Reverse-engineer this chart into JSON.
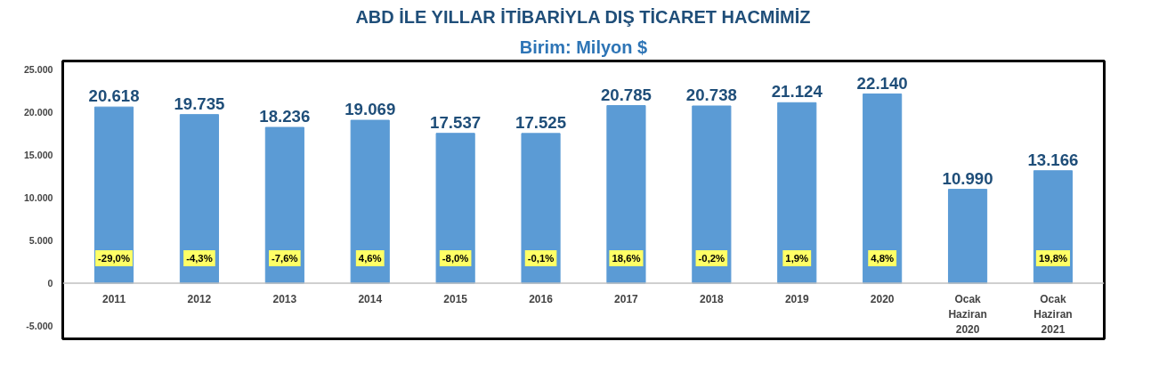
{
  "chart_data": {
    "type": "bar",
    "title": "ABD İLE YILLAR İTİBARİYLA DIŞ TİCARET HACMİMİZ",
    "subtitle": "Birim: Milyon $",
    "categories": [
      "2011",
      "2012",
      "2013",
      "2014",
      "2015",
      "2016",
      "2017",
      "2018",
      "2019",
      "2020",
      "Ocak\nHaziran\n2020",
      "Ocak\nHaziran\n2021"
    ],
    "values": [
      20618,
      19735,
      18236,
      19069,
      17537,
      17525,
      20785,
      20738,
      21124,
      22140,
      10990,
      13166
    ],
    "value_labels": [
      "20.618",
      "19.735",
      "18.236",
      "19.069",
      "17.537",
      "17.525",
      "20.785",
      "20.738",
      "21.124",
      "22.140",
      "10.990",
      "13.166"
    ],
    "color": "#5b9bd5",
    "ylim": [
      -6500,
      26000
    ],
    "yticks": [
      {
        "value": -5000,
        "label": "-5.000"
      },
      {
        "value": 0,
        "label": "0"
      },
      {
        "value": 5000,
        "label": "5.000"
      },
      {
        "value": 10000,
        "label": "10.000"
      },
      {
        "value": 15000,
        "label": "15.000"
      },
      {
        "value": 20000,
        "label": "20.000"
      },
      {
        "value": 25000,
        "label": "25.000"
      }
    ],
    "grid": false,
    "ref_lines": [
      {
        "axis": "y",
        "value": 0,
        "color": "#bfbfbf"
      }
    ],
    "annotations": [
      {
        "text": "-29,0%",
        "x": "2011"
      },
      {
        "text": "-4,3%",
        "x": "2012"
      },
      {
        "text": "-7,6%",
        "x": "2013"
      },
      {
        "text": "4,6%",
        "x": "2014"
      },
      {
        "text": "-8,0%",
        "x": "2015"
      },
      {
        "text": "-0,1%",
        "x": "2016"
      },
      {
        "text": "18,6%",
        "x": "2017"
      },
      {
        "text": "-0,2%",
        "x": "2018"
      },
      {
        "text": "1,9%",
        "x": "2019"
      },
      {
        "text": "4,8%",
        "x": "2020"
      },
      {
        "text": "19,8%",
        "x": "Ocak\nHaziran\n2021"
      }
    ]
  }
}
